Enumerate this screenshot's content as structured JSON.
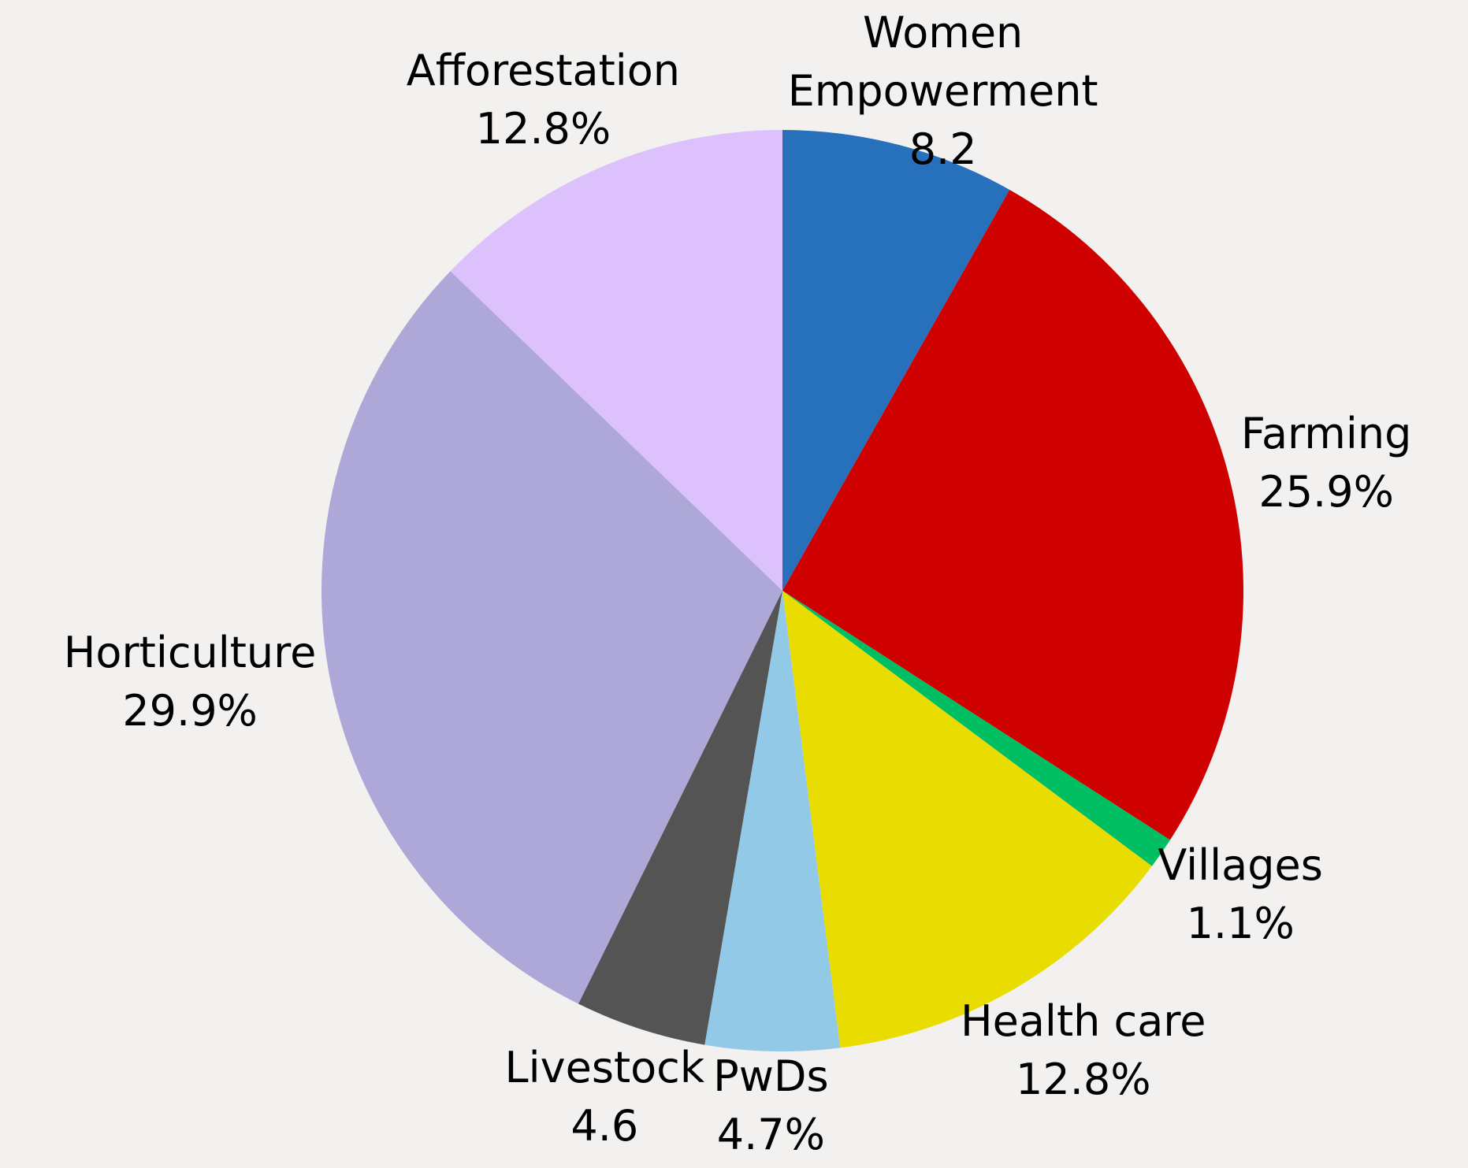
{
  "chart_data": {
    "type": "pie",
    "categories": [
      "Women\nEmpowerment",
      "Farming",
      "Villages",
      "Health care",
      "PwDs",
      "Livestock",
      "Horticulture",
      "Afforestation"
    ],
    "values": [
      8.2,
      25.9,
      1.1,
      12.8,
      4.7,
      4.6,
      29.9,
      12.8
    ],
    "value_labels": [
      "8.2",
      "25.9%",
      "1.1%",
      "12.8%",
      "4.7%",
      "4.6",
      "29.9%",
      "12.8%"
    ],
    "colors": [
      "#2771bc",
      "#cf0000",
      "#00bf63",
      "#e8dc00",
      "#92c9e6",
      "#545454",
      "#aea8d8",
      "#dcc1fc"
    ]
  }
}
